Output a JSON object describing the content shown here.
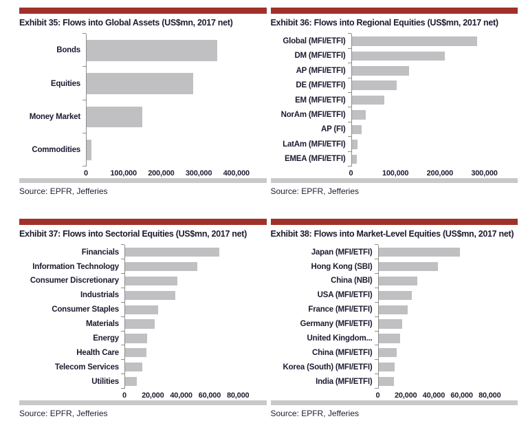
{
  "page": {
    "source_label": "Source: EPFR, Jefferies",
    "colors": {
      "accent_bar": "#a0312a",
      "bar_fill": "#c0c0c2",
      "divider": "#c9c9c9",
      "text": "#1b1b30",
      "axis_line": "#8c8c8c"
    }
  },
  "chart_data": [
    {
      "type": "bar",
      "orientation": "horizontal",
      "title": "Exhibit 35: Flows into Global Assets (US$mn, 2017 net)",
      "categories": [
        "Bonds",
        "Equities",
        "Money Market",
        "Commodities"
      ],
      "values": [
        348000,
        284000,
        148000,
        12000
      ],
      "xticks": [
        0,
        100000,
        200000,
        300000,
        400000
      ],
      "xlim": [
        0,
        480000
      ],
      "xlabel": "",
      "ylabel": "",
      "grid": false,
      "legend": false,
      "bar_color": "#c0c0c2"
    },
    {
      "type": "bar",
      "orientation": "horizontal",
      "title": "Exhibit 36: Flows into Regional Equities (US$mn, 2017 net)",
      "categories": [
        "Global (MFI/ETFI)",
        "DM (MFI/ETFI)",
        "AP (MFI/ETFI)",
        "DE (MFI/ETFI)",
        "EM (MFI/ETFI)",
        "NorAm (MFI/ETFI)",
        "AP (FI)",
        "LatAm (MFI/ETFI)",
        "EMEA (MFI/ETFI)"
      ],
      "values": [
        284000,
        211000,
        129000,
        101000,
        73000,
        32000,
        23000,
        13000,
        11000
      ],
      "xticks": [
        0,
        100000,
        200000,
        300000
      ],
      "xlim": [
        0,
        375000
      ],
      "xlabel": "",
      "ylabel": "",
      "grid": false,
      "legend": false,
      "bar_color": "#c0c0c2"
    },
    {
      "type": "bar",
      "orientation": "horizontal",
      "title": "Exhibit 37: Flows into Sectorial Equities (US$mn, 2017 net)",
      "categories": [
        "Financials",
        "Information Technology",
        "Consumer Discretionary",
        "Industrials",
        "Consumer Staples",
        "Materials",
        "Energy",
        "Health Care",
        "Telecom Services",
        "Utilities"
      ],
      "values": [
        66500,
        51000,
        37000,
        35500,
        23500,
        21000,
        15500,
        15000,
        12000,
        8500
      ],
      "xticks": [
        0,
        20000,
        40000,
        60000,
        80000
      ],
      "xlim": [
        0,
        100000
      ],
      "xlabel": "",
      "ylabel": "",
      "grid": false,
      "legend": false,
      "bar_color": "#c0c0c2"
    },
    {
      "type": "bar",
      "orientation": "horizontal",
      "title": "Exhibit 38: Flows into Market-Level Equities (US$mn, 2017 net)",
      "categories": [
        "Japan (MFI/ETFI)",
        "Hong Kong (SBI)",
        "China (NBI)",
        "USA (MFI/ETFI)",
        "France (MFI/ETFI)",
        "Germany (MFI/ETFI)",
        "United Kingdom...",
        "China (MFI/ETFI)",
        "Korea (South) (MFI/ETFI)",
        "India (MFI/ETFI)"
      ],
      "values": [
        58500,
        42500,
        28000,
        24000,
        21000,
        17000,
        15500,
        13000,
        11500,
        11000
      ],
      "xticks": [
        0,
        20000,
        40000,
        60000,
        80000
      ],
      "xlim": [
        0,
        100000
      ],
      "xlabel": "",
      "ylabel": "",
      "grid": false,
      "legend": false,
      "bar_color": "#c0c0c2"
    }
  ]
}
